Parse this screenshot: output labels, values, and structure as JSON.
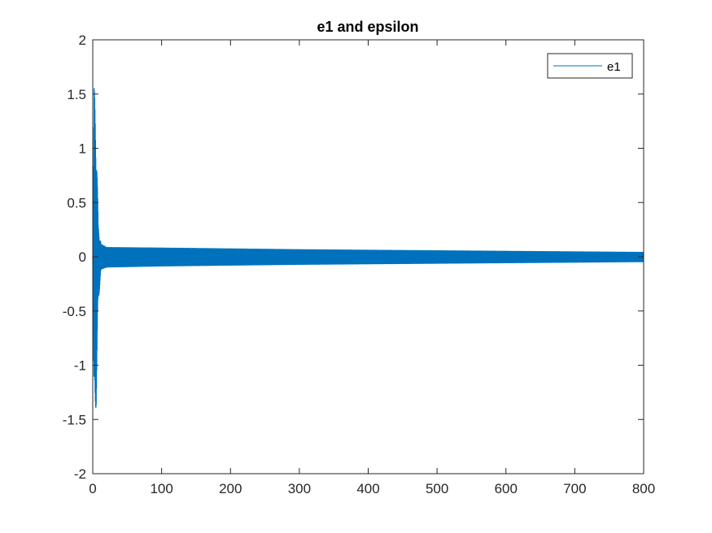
{
  "chart_data": {
    "type": "line",
    "title": "e1 and epsilon",
    "xlabel": "",
    "ylabel": "",
    "xlim": [
      0,
      800
    ],
    "ylim": [
      -2,
      2
    ],
    "xticks": [
      0,
      100,
      200,
      300,
      400,
      500,
      600,
      700,
      800
    ],
    "yticks": [
      -2,
      -1.5,
      -1,
      -0.5,
      0,
      0.5,
      1,
      1.5,
      2
    ],
    "xtick_labels": [
      "0",
      "100",
      "200",
      "300",
      "400",
      "500",
      "600",
      "700",
      "800"
    ],
    "ytick_labels": [
      "-2",
      "-1.5",
      "-1",
      "-0.5",
      "0",
      "0.5",
      "1",
      "1.5",
      "2"
    ],
    "grid": false,
    "legend": {
      "location": "top-right",
      "entries": [
        "e1"
      ]
    },
    "series": [
      {
        "name": "e1",
        "color": "#0072BD",
        "description_of_shape": "high-frequency oscillation",
        "envelope": [
          {
            "x": 0,
            "upper": 0.0,
            "lower": 0.0
          },
          {
            "x": 2,
            "upper": 1.58,
            "lower": -1.62
          },
          {
            "x": 5,
            "upper": 1.2,
            "lower": -1.37
          },
          {
            "x": 8,
            "upper": 0.3,
            "lower": -0.45
          },
          {
            "x": 12,
            "upper": 0.12,
            "lower": -0.12
          },
          {
            "x": 20,
            "upper": 0.09,
            "lower": -0.1
          },
          {
            "x": 100,
            "upper": 0.085,
            "lower": -0.09
          },
          {
            "x": 300,
            "upper": 0.07,
            "lower": -0.075
          },
          {
            "x": 500,
            "upper": 0.06,
            "lower": -0.065
          },
          {
            "x": 800,
            "upper": 0.045,
            "lower": -0.05
          }
        ]
      }
    ]
  },
  "colors": {
    "axes": "#262626",
    "line": "#0072BD",
    "background": "#ffffff"
  }
}
